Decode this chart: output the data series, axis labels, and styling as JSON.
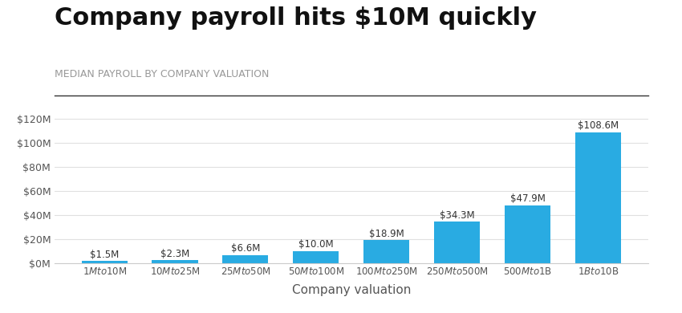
{
  "title": "Company payroll hits $10M quickly",
  "subtitle": "MEDIAN PAYROLL BY COMPANY VALUATION",
  "xlabel": "Company valuation",
  "categories": [
    "$1M to $10M",
    "$10M to $25M",
    "$25M to $50M",
    "$50M to $100M",
    "$100M to $250M",
    "$250M to $500M",
    "$500M to $1B",
    "$1B to $10B"
  ],
  "values": [
    1.5,
    2.3,
    6.6,
    10.0,
    18.9,
    34.3,
    47.9,
    108.6
  ],
  "labels": [
    "$1.5M",
    "$2.3M",
    "$6.6M",
    "$10.0M",
    "$18.9M",
    "$34.3M",
    "$47.9M",
    "$108.6M"
  ],
  "bar_color": "#29ABE2",
  "background_color": "#ffffff",
  "ylim": [
    0,
    130
  ],
  "yticks": [
    0,
    20,
    40,
    60,
    80,
    100,
    120
  ],
  "ytick_labels": [
    "$0M",
    "$20M",
    "$40M",
    "$60M",
    "$80M",
    "$100M",
    "$120M"
  ],
  "title_fontsize": 22,
  "subtitle_fontsize": 9,
  "xlabel_fontsize": 11,
  "bar_label_fontsize": 8.5,
  "grid_color": "#e0e0e0",
  "axis_label_color": "#333333",
  "subtitle_color": "#999999",
  "xlabel_color": "#555555"
}
